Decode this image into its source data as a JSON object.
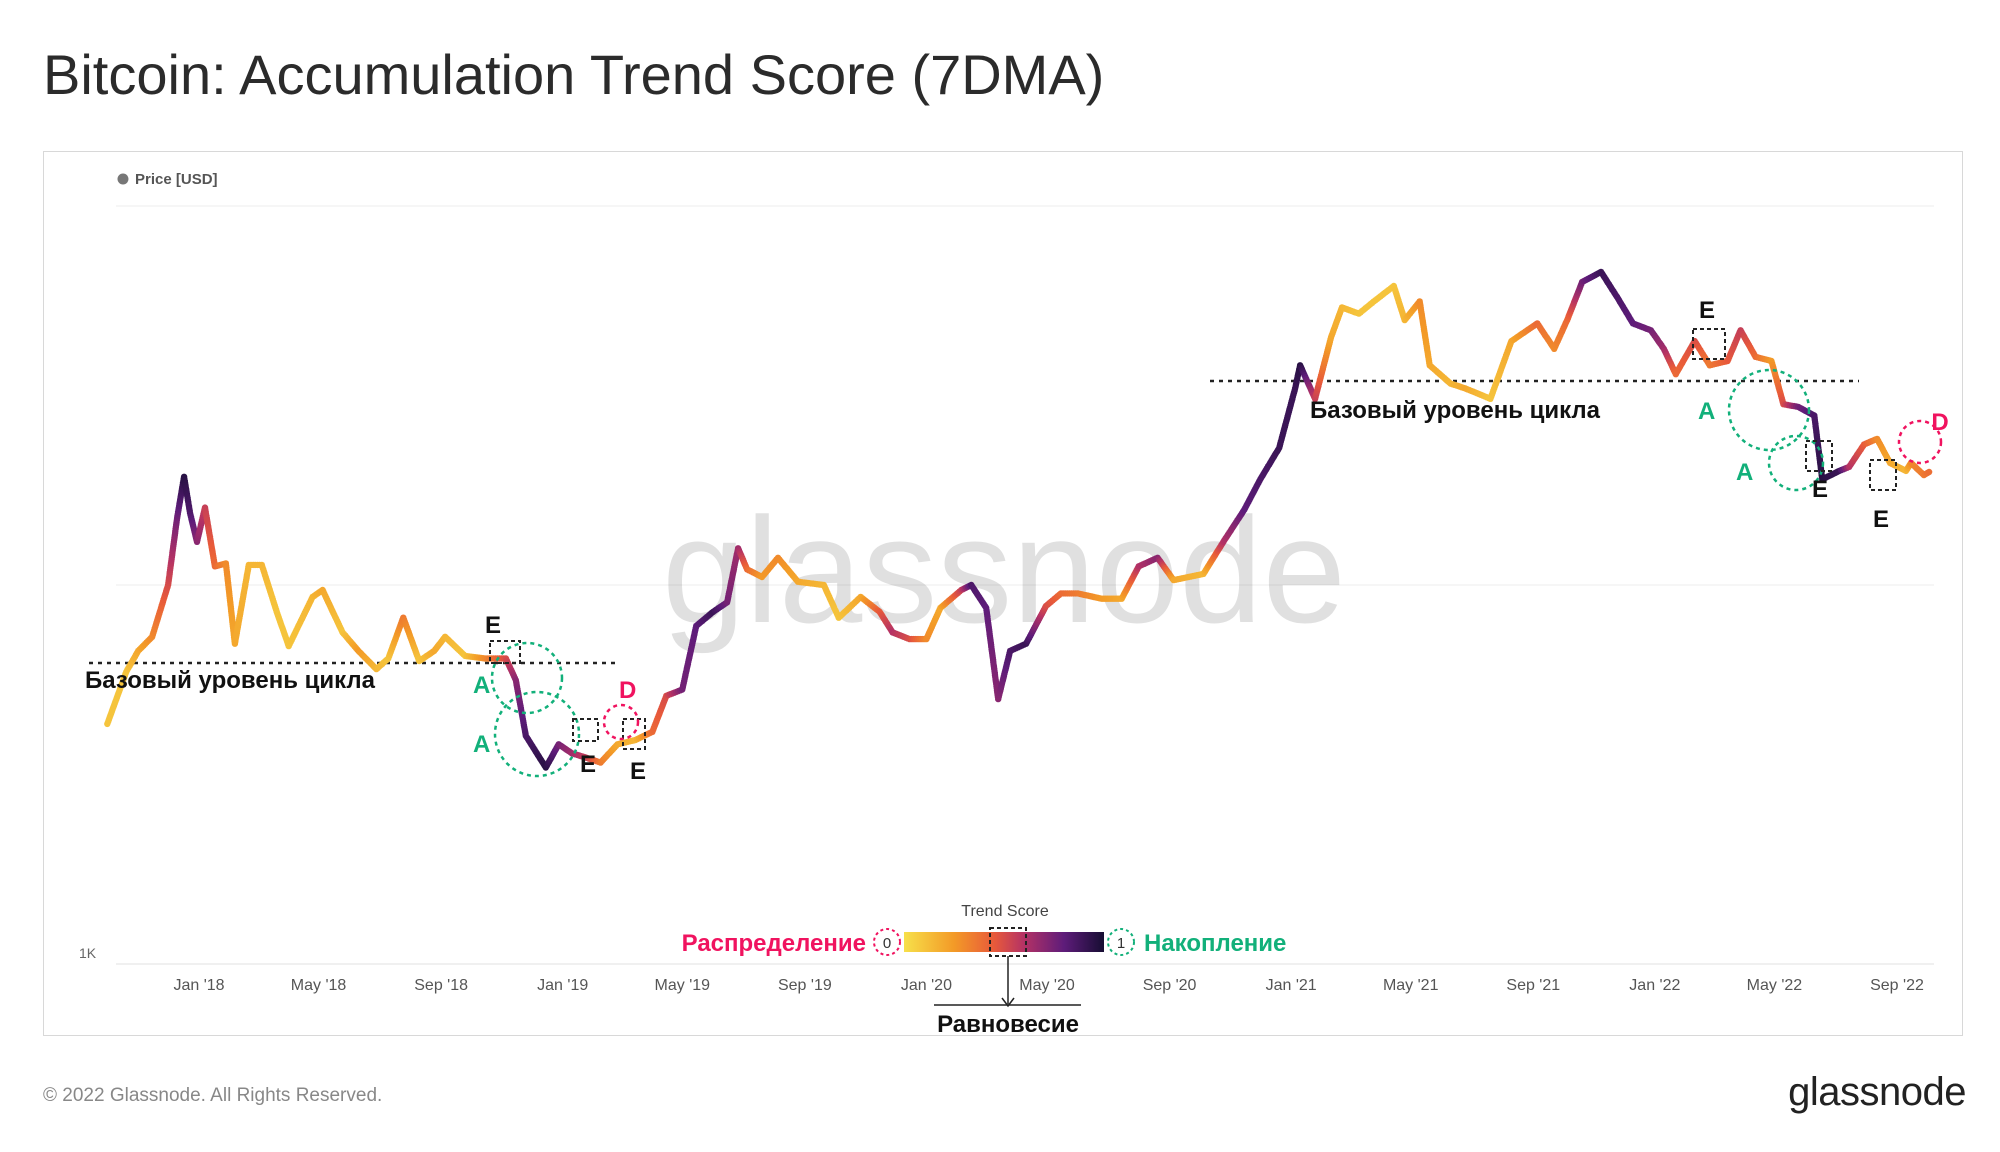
{
  "title": "Bitcoin: Accumulation Trend Score (7DMA)",
  "footer": {
    "copyright": "© 2022 Glassnode. All Rights Reserved.",
    "logo": "glassnode"
  },
  "watermark": "glassnode",
  "colors": {
    "distribution": "#f0135f",
    "accumulation": "#12b07a",
    "low": "#f6d745",
    "mid": "#f08828",
    "high": "#1a0f3c"
  },
  "chart_data": {
    "type": "line",
    "legend": {
      "label": "Price [USD]",
      "placement": "top-left"
    },
    "y_axis": {
      "scale": "log",
      "tick_labels": [
        "1K"
      ],
      "grid": true
    },
    "x_axis": {
      "ticks": [
        "Jan '18",
        "May '18",
        "Sep '18",
        "Jan '19",
        "May '19",
        "Sep '19",
        "Jan '20",
        "May '20",
        "Sep '20",
        "Jan '21",
        "May '21",
        "Sep '21",
        "Jan '22",
        "May '22",
        "Sep '22"
      ]
    },
    "colorbar": {
      "title": "Trend Score",
      "min_label": "0",
      "max_label": "1",
      "min_text": "Распределение",
      "max_text": "Накопление",
      "mid_text": "Равновесие"
    },
    "series": [
      {
        "name": "Price [USD]",
        "points": [
          [
            "2017-10-01",
            4300,
            0.1
          ],
          [
            "2017-10-20",
            5900,
            0.1
          ],
          [
            "2017-11-01",
            6700,
            0.2
          ],
          [
            "2017-11-15",
            7300,
            0.3
          ],
          [
            "2017-12-01",
            10000,
            0.5
          ],
          [
            "2017-12-10",
            15000,
            0.75
          ],
          [
            "2017-12-17",
            19300,
            0.95
          ],
          [
            "2017-12-23",
            15500,
            0.85
          ],
          [
            "2017-12-30",
            13000,
            0.7
          ],
          [
            "2018-01-07",
            16000,
            0.55
          ],
          [
            "2018-01-17",
            11200,
            0.4
          ],
          [
            "2018-01-28",
            11400,
            0.3
          ],
          [
            "2018-02-06",
            7000,
            0.2
          ],
          [
            "2018-02-20",
            11300,
            0.15
          ],
          [
            "2018-03-05",
            11300,
            0.15
          ],
          [
            "2018-03-20",
            8500,
            0.1
          ],
          [
            "2018-04-01",
            6900,
            0.1
          ],
          [
            "2018-04-25",
            9300,
            0.15
          ],
          [
            "2018-05-05",
            9700,
            0.2
          ],
          [
            "2018-05-25",
            7500,
            0.1
          ],
          [
            "2018-06-10",
            6700,
            0.25
          ],
          [
            "2018-06-28",
            6000,
            0.15
          ],
          [
            "2018-07-10",
            6400,
            0.1
          ],
          [
            "2018-07-25",
            8200,
            0.35
          ],
          [
            "2018-08-10",
            6300,
            0.1
          ],
          [
            "2018-08-25",
            6700,
            0.2
          ],
          [
            "2018-09-05",
            7300,
            0.15
          ],
          [
            "2018-09-25",
            6500,
            0.1
          ],
          [
            "2018-10-15",
            6400,
            0.3
          ],
          [
            "2018-11-05",
            6400,
            0.5
          ],
          [
            "2018-11-15",
            5600,
            0.7
          ],
          [
            "2018-11-25",
            4000,
            0.85
          ],
          [
            "2018-12-15",
            3300,
            0.95
          ],
          [
            "2018-12-28",
            3800,
            0.75
          ],
          [
            "2019-01-10",
            3600,
            0.65
          ],
          [
            "2019-01-25",
            3500,
            0.55
          ],
          [
            "2019-02-08",
            3400,
            0.35
          ],
          [
            "2019-02-25",
            3800,
            0.2
          ],
          [
            "2019-03-15",
            3900,
            0.15
          ],
          [
            "2019-04-01",
            4100,
            0.4
          ],
          [
            "2019-04-15",
            5100,
            0.5
          ],
          [
            "2019-05-01",
            5300,
            0.75
          ],
          [
            "2019-05-15",
            7800,
            0.8
          ],
          [
            "2019-06-01",
            8500,
            0.9
          ],
          [
            "2019-06-15",
            9000,
            0.75
          ],
          [
            "2019-06-26",
            12500,
            0.65
          ],
          [
            "2019-07-05",
            11000,
            0.4
          ],
          [
            "2019-07-20",
            10500,
            0.25
          ],
          [
            "2019-08-05",
            11800,
            0.3
          ],
          [
            "2019-08-25",
            10200,
            0.2
          ],
          [
            "2019-09-20",
            10000,
            0.15
          ],
          [
            "2019-10-05",
            8200,
            0.1
          ],
          [
            "2019-10-27",
            9300,
            0.2
          ],
          [
            "2019-11-15",
            8500,
            0.45
          ],
          [
            "2019-11-28",
            7500,
            0.6
          ],
          [
            "2019-12-15",
            7200,
            0.5
          ],
          [
            "2020-01-01",
            7200,
            0.3
          ],
          [
            "2020-01-15",
            8700,
            0.2
          ],
          [
            "2020-02-05",
            9700,
            0.55
          ],
          [
            "2020-02-15",
            10000,
            0.85
          ],
          [
            "2020-03-01",
            8700,
            0.8
          ],
          [
            "2020-03-13",
            5000,
            0.7
          ],
          [
            "2020-03-25",
            6700,
            0.85
          ],
          [
            "2020-04-10",
            7000,
            0.9
          ],
          [
            "2020-04-30",
            8800,
            0.5
          ],
          [
            "2020-05-15",
            9500,
            0.4
          ],
          [
            "2020-06-01",
            9500,
            0.35
          ],
          [
            "2020-06-25",
            9200,
            0.25
          ],
          [
            "2020-07-15",
            9200,
            0.2
          ],
          [
            "2020-08-01",
            11200,
            0.6
          ],
          [
            "2020-08-20",
            11800,
            0.7
          ],
          [
            "2020-09-05",
            10300,
            0.2
          ],
          [
            "2020-10-05",
            10700,
            0.15
          ],
          [
            "2020-10-25",
            13000,
            0.6
          ],
          [
            "2020-11-15",
            15800,
            0.8
          ],
          [
            "2020-12-01",
            19000,
            0.85
          ],
          [
            "2020-12-20",
            23000,
            0.9
          ],
          [
            "2021-01-05",
            33000,
            0.9
          ],
          [
            "2021-01-10",
            38000,
            0.95
          ],
          [
            "2021-01-25",
            31000,
            0.55
          ],
          [
            "2021-02-10",
            45000,
            0.2
          ],
          [
            "2021-02-21",
            54000,
            0.15
          ],
          [
            "2021-03-10",
            52000,
            0.1
          ],
          [
            "2021-03-25",
            56000,
            0.1
          ],
          [
            "2021-04-14",
            61500,
            0.1
          ],
          [
            "2021-04-25",
            50000,
            0.15
          ],
          [
            "2021-05-10",
            56000,
            0.3
          ],
          [
            "2021-05-20",
            38000,
            0.2
          ],
          [
            "2021-06-10",
            34000,
            0.15
          ],
          [
            "2021-06-25",
            33000,
            0.2
          ],
          [
            "2021-07-20",
            31000,
            0.1
          ],
          [
            "2021-08-10",
            44000,
            0.2
          ],
          [
            "2021-09-05",
            49000,
            0.4
          ],
          [
            "2021-09-22",
            42000,
            0.3
          ],
          [
            "2021-10-05",
            50000,
            0.4
          ],
          [
            "2021-10-20",
            63000,
            0.75
          ],
          [
            "2021-11-08",
            67000,
            0.9
          ],
          [
            "2021-11-25",
            57000,
            0.85
          ],
          [
            "2021-12-10",
            49000,
            0.8
          ],
          [
            "2021-12-28",
            47000,
            0.75
          ],
          [
            "2022-01-10",
            42000,
            0.65
          ],
          [
            "2022-01-22",
            36000,
            0.4
          ],
          [
            "2022-02-10",
            44000,
            0.5
          ],
          [
            "2022-02-25",
            38000,
            0.35
          ],
          [
            "2022-03-15",
            39000,
            0.45
          ],
          [
            "2022-03-28",
            47000,
            0.55
          ],
          [
            "2022-04-12",
            40000,
            0.4
          ],
          [
            "2022-04-28",
            39000,
            0.25
          ],
          [
            "2022-05-10",
            30000,
            0.5
          ],
          [
            "2022-05-25",
            29500,
            0.75
          ],
          [
            "2022-06-10",
            28000,
            0.85
          ],
          [
            "2022-06-18",
            19000,
            0.95
          ],
          [
            "2022-07-05",
            20000,
            0.9
          ],
          [
            "2022-07-15",
            20500,
            0.6
          ],
          [
            "2022-07-30",
            23500,
            0.45
          ],
          [
            "2022-08-12",
            24300,
            0.3
          ],
          [
            "2022-08-25",
            21000,
            0.2
          ],
          [
            "2022-09-10",
            20000,
            0.15
          ],
          [
            "2022-09-15",
            21000,
            0.3
          ],
          [
            "2022-09-28",
            19500,
            0.35
          ],
          [
            "2022-10-05",
            20000,
            0.4
          ]
        ]
      }
    ],
    "annotations": {
      "baseline_label": "Базовый уровень цикла",
      "marker_A": "A",
      "marker_D": "D",
      "marker_E": "E"
    }
  }
}
